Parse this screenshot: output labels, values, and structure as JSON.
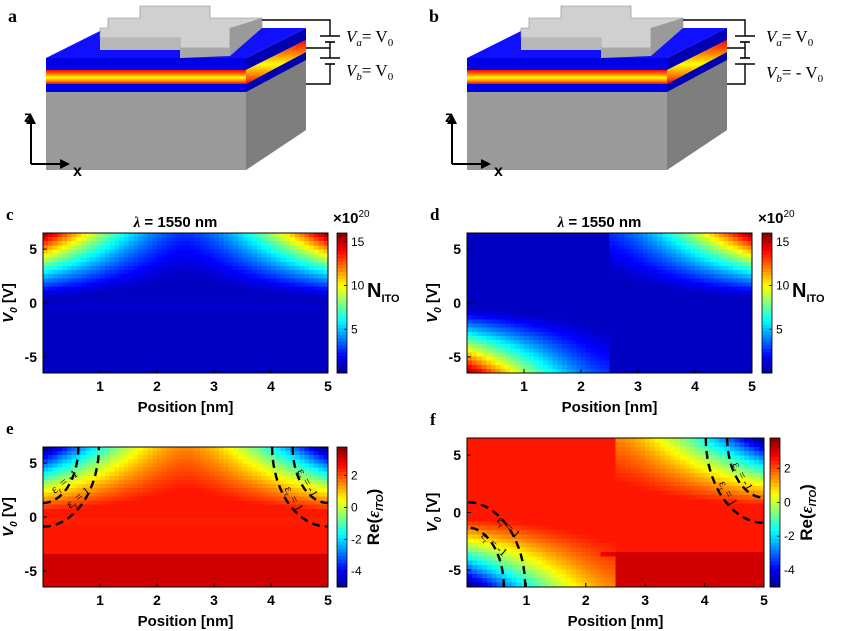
{
  "panels": {
    "a": {
      "letter": "a",
      "va_label": "V",
      "va_sub": "a",
      "va_rhs": "= V",
      "va_rhs_sub": "0",
      "vb_label": "V",
      "vb_sub": "b",
      "vb_rhs": "= V",
      "vb_rhs_sub": "0",
      "axis_z": "z",
      "axis_x": "x"
    },
    "b": {
      "letter": "b",
      "va_label": "V",
      "va_sub": "a",
      "va_rhs": "= V",
      "va_rhs_sub": "0",
      "vb_label": "V",
      "vb_sub": "b",
      "vb_rhs": "= - V",
      "vb_rhs_sub": "0",
      "axis_z": "z",
      "axis_x": "x"
    }
  },
  "colors": {
    "cmap": [
      "#00008f",
      "#0000ff",
      "#0080ff",
      "#00ffff",
      "#80ff80",
      "#ffff00",
      "#ff8000",
      "#ff0000",
      "#800000"
    ],
    "block_gray": "#a6a6a6",
    "layer_blue": "#0000e6",
    "contour": "#000000"
  },
  "chart_data": [
    {
      "id": "c",
      "letter": "c",
      "type": "heatmap",
      "title_prefix": "λ",
      "title_suffix": "= 1550 nm",
      "xlabel": "Position [nm]",
      "ylabel": "V",
      "ylabel_sub": "0",
      "ylabel_unit": " [V]",
      "xlim": [
        0,
        5
      ],
      "ylim": [
        -6.5,
        6.5
      ],
      "xticks": [
        "1",
        "2",
        "3",
        "4",
        "5"
      ],
      "xtick_values": [
        1,
        2,
        3,
        4,
        5
      ],
      "yticks": [
        "5",
        "0",
        "-5"
      ],
      "ytick_values": [
        5,
        0,
        -5
      ],
      "colorbar": {
        "ticks": [
          "15",
          "10",
          "5"
        ],
        "tick_values": [
          15,
          10,
          5
        ],
        "range": [
          0,
          16
        ],
        "label": "N",
        "label_sub": "ITO",
        "exponent_prefix": "×10",
        "exponent_power": "20"
      },
      "field": {
        "quantity": "carrier concentration N_ITO",
        "units": "x10^20",
        "mode": "symmetric",
        "min": 0.2,
        "max": 15.6
      },
      "contours": []
    },
    {
      "id": "d",
      "letter": "d",
      "type": "heatmap",
      "title_prefix": "λ",
      "title_suffix": "= 1550 nm",
      "xlabel": "Position [nm]",
      "ylabel": "V",
      "ylabel_sub": "0",
      "ylabel_unit": " [V]",
      "xlim": [
        0,
        5
      ],
      "ylim": [
        -6.5,
        6.5
      ],
      "xticks": [
        "1",
        "2",
        "3",
        "4",
        "5"
      ],
      "xtick_values": [
        1,
        2,
        3,
        4,
        5
      ],
      "yticks": [
        "5",
        "0",
        "-5"
      ],
      "ytick_values": [
        5,
        0,
        -5
      ],
      "colorbar": {
        "ticks": [
          "15",
          "10",
          "5"
        ],
        "tick_values": [
          15,
          10,
          5
        ],
        "range": [
          0,
          16
        ],
        "label": "N",
        "label_sub": "ITO",
        "exponent_prefix": "×10",
        "exponent_power": "20"
      },
      "field": {
        "quantity": "carrier concentration N_ITO",
        "units": "x10^20",
        "mode": "antisymmetric",
        "min": 0.2,
        "max": 15.6
      },
      "contours": []
    },
    {
      "id": "e",
      "letter": "e",
      "type": "heatmap",
      "title_prefix": "",
      "title_suffix": "",
      "xlabel": "Position [nm]",
      "ylabel": "V",
      "ylabel_sub": "0",
      "ylabel_unit": " [V]",
      "xlim": [
        0,
        5
      ],
      "ylim": [
        -6.5,
        6.5
      ],
      "xticks": [
        "1",
        "2",
        "3",
        "4",
        "5"
      ],
      "xtick_values": [
        1,
        2,
        3,
        4,
        5
      ],
      "yticks": [
        "5",
        "0",
        "-5"
      ],
      "ytick_values": [
        5,
        0,
        -5
      ],
      "colorbar": {
        "ticks": [
          "2",
          "0",
          "-2",
          "-4"
        ],
        "tick_values": [
          2,
          0,
          -2,
          -4
        ],
        "range": [
          -5,
          3.8
        ],
        "label": "Re(",
        "label_eps": "ε",
        "label_sub": "ITO",
        "label_close": ")"
      },
      "field": {
        "quantity": "Re(eps_ITO)",
        "mode": "symmetric",
        "min": -5,
        "max": 3.8
      },
      "contours": [
        {
          "level": -1,
          "label_eps": "ε",
          "label_sub": "r",
          "label_rhs": " = -1"
        },
        {
          "level": 1,
          "label_eps": "ε",
          "label_sub": "r",
          "label_rhs": " = 1"
        }
      ]
    },
    {
      "id": "f",
      "letter": "f",
      "type": "heatmap",
      "title_prefix": "",
      "title_suffix": "",
      "xlabel": "Position [nm]",
      "ylabel": "V",
      "ylabel_sub": "0",
      "ylabel_unit": " [V]",
      "xlim": [
        0,
        5
      ],
      "ylim": [
        -6.5,
        6.5
      ],
      "xticks": [
        "1",
        "2",
        "3",
        "4",
        "5"
      ],
      "xtick_values": [
        1,
        2,
        3,
        4,
        5
      ],
      "yticks": [
        "5",
        "0",
        "-5"
      ],
      "ytick_values": [
        5,
        0,
        -5
      ],
      "colorbar": {
        "ticks": [
          "2",
          "0",
          "-2",
          "-4"
        ],
        "tick_values": [
          2,
          0,
          -2,
          -4
        ],
        "range": [
          -5,
          3.8
        ],
        "label": "Re(",
        "label_eps": "ε",
        "label_sub": "ITO",
        "label_close": ")"
      },
      "field": {
        "quantity": "Re(eps_ITO)",
        "mode": "antisymmetric",
        "min": -5,
        "max": 3.8
      },
      "contours": [
        {
          "level": -1,
          "label_eps": "ε",
          "label_sub": "r",
          "label_rhs": " = -1"
        },
        {
          "level": 1,
          "label_eps": "ε",
          "label_sub": "r",
          "label_rhs": " = 1"
        }
      ]
    }
  ]
}
